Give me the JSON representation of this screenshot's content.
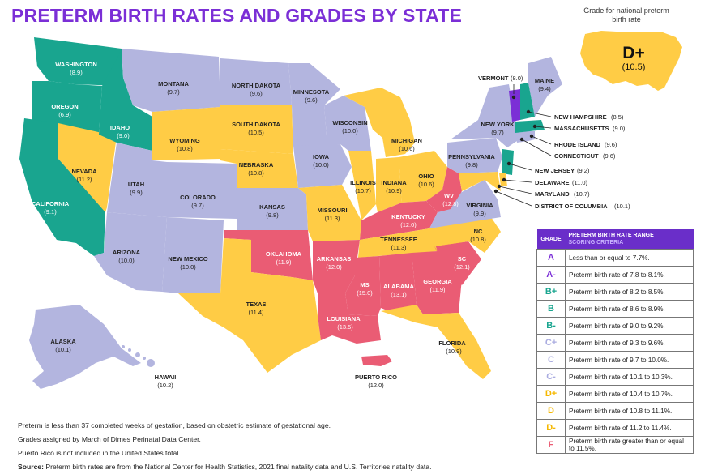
{
  "title": "PRETERM BIRTH RATES AND GRADES BY STATE",
  "national": {
    "caption": "Grade for national preterm birth rate",
    "grade": "D+",
    "rate": "(10.5)"
  },
  "colors": {
    "A": "#7b2fd6",
    "B": "#19a58f",
    "C": "#b3b5df",
    "D": "#ffcc45",
    "F": "#ea5c74"
  },
  "states": {
    "WA": {
      "name": "WASHINGTON",
      "rate": "(8.9)"
    },
    "OR": {
      "name": "OREGON",
      "rate": "(6.9)"
    },
    "CA": {
      "name": "CALIFORNIA",
      "rate": "(9.1)"
    },
    "NV": {
      "name": "NEVADA",
      "rate": "(11.2)"
    },
    "ID": {
      "name": "IDAHO",
      "rate": "(9.0)"
    },
    "MT": {
      "name": "MONTANA",
      "rate": "(9.7)"
    },
    "WY": {
      "name": "WYOMING",
      "rate": "(10.8)"
    },
    "UT": {
      "name": "UTAH",
      "rate": "(9.9)"
    },
    "AZ": {
      "name": "ARIZONA",
      "rate": "(10.0)"
    },
    "CO": {
      "name": "COLORADO",
      "rate": "(9.7)"
    },
    "NM": {
      "name": "NEW MEXICO",
      "rate": "(10.0)"
    },
    "ND": {
      "name": "NORTH DAKOTA",
      "rate": "(9.6)"
    },
    "SD": {
      "name": "SOUTH DAKOTA",
      "rate": "(10.5)"
    },
    "NE": {
      "name": "NEBRASKA",
      "rate": "(10.8)"
    },
    "KS": {
      "name": "KANSAS",
      "rate": "(9.8)"
    },
    "OK": {
      "name": "OKLAHOMA",
      "rate": "(11.9)"
    },
    "TX": {
      "name": "TEXAS",
      "rate": "(11.4)"
    },
    "MN": {
      "name": "MINNESOTA",
      "rate": "(9.6)"
    },
    "IA": {
      "name": "IOWA",
      "rate": "(10.0)"
    },
    "MO": {
      "name": "MISSOURI",
      "rate": "(11.3)"
    },
    "AR": {
      "name": "ARKANSAS",
      "rate": "(12.0)"
    },
    "LA": {
      "name": "LOUISIANA",
      "rate": "(13.5)"
    },
    "WI": {
      "name": "WISCONSIN",
      "rate": "(10.0)"
    },
    "IL": {
      "name": "ILLINOIS",
      "rate": "(10.7)"
    },
    "MI": {
      "name": "MICHIGAN",
      "rate": "(10.6)"
    },
    "IN": {
      "name": "INDIANA",
      "rate": "(10.9)"
    },
    "OH": {
      "name": "OHIO",
      "rate": "(10.6)"
    },
    "KY": {
      "name": "KENTUCKY",
      "rate": "(12.0)"
    },
    "TN": {
      "name": "TENNESSEE",
      "rate": "(11.3)"
    },
    "MS": {
      "name": "MS",
      "rate": "(15.0)"
    },
    "AL": {
      "name": "ALABAMA",
      "rate": "(13.1)"
    },
    "GA": {
      "name": "GEORGIA",
      "rate": "(11.9)"
    },
    "FL": {
      "name": "FLORIDA",
      "rate": "(10.9)"
    },
    "SC": {
      "name": "SC",
      "rate": "(12.1)"
    },
    "NC": {
      "name": "NC",
      "rate": "(10.8)"
    },
    "VA": {
      "name": "VIRGINIA",
      "rate": "(9.9)"
    },
    "WV": {
      "name": "WV",
      "rate": "(12.8)"
    },
    "PA": {
      "name": "PENNSYLVANIA",
      "rate": "(9.8)"
    },
    "NY": {
      "name": "NEW YORK",
      "rate": "(9.7)"
    },
    "ME": {
      "name": "MAINE",
      "rate": "(9.4)"
    },
    "AK": {
      "name": "ALASKA",
      "rate": "(10.1)"
    },
    "HI": {
      "name": "HAWAII",
      "rate": "(10.2)"
    },
    "PR": {
      "name": "PUERTO RICO",
      "rate": "(12.0)"
    }
  },
  "callouts": {
    "VT": {
      "name": "VERMONT",
      "rate": "(8.0)"
    },
    "NH": {
      "name": "NEW HAMPSHIRE",
      "rate": "(8.5)"
    },
    "MA": {
      "name": "MASSACHUSETTS",
      "rate": "(9.0)"
    },
    "RI": {
      "name": "RHODE ISLAND",
      "rate": "(9.6)"
    },
    "CT": {
      "name": "CONNECTICUT",
      "rate": "(9.6)"
    },
    "NJ": {
      "name": "NEW JERSEY",
      "rate": "(9.2)"
    },
    "DE": {
      "name": "DELAWARE",
      "rate": "(11.0)"
    },
    "MD": {
      "name": "MARYLAND",
      "rate": "(10.7)"
    },
    "DC": {
      "name": "DISTRICT OF COLUMBIA",
      "rate": "(10.1)"
    }
  },
  "legend": {
    "header_grade": "GRADE",
    "header_range": "PRETERM BIRTH RATE RANGE",
    "header_sub": "SCORING CRITERIA",
    "rows": [
      {
        "grade": "A",
        "text": "Less than or equal to 7.7%.",
        "color": "#7b2fd6"
      },
      {
        "grade": "A-",
        "text": "Preterm birth rate of 7.8 to 8.1%.",
        "color": "#7b2fd6"
      },
      {
        "grade": "B+",
        "text": "Preterm birth rate of 8.2 to 8.5%.",
        "color": "#19a58f"
      },
      {
        "grade": "B",
        "text": "Preterm birth rate of 8.6 to 8.9%.",
        "color": "#19a58f"
      },
      {
        "grade": "B-",
        "text": "Preterm birth rate of 9.0 to 9.2%.",
        "color": "#19a58f"
      },
      {
        "grade": "C+",
        "text": "Preterm birth rate of 9.3 to 9.6%.",
        "color": "#a9abe0"
      },
      {
        "grade": "C",
        "text": "Preterm birth rate of 9.7 to 10.0%.",
        "color": "#a9abe0"
      },
      {
        "grade": "C-",
        "text": "Preterm birth rate of 10.1 to 10.3%.",
        "color": "#a9abe0"
      },
      {
        "grade": "D+",
        "text": "Preterm birth rate of 10.4 to 10.7%.",
        "color": "#f5b800"
      },
      {
        "grade": "D",
        "text": "Preterm birth rate of 10.8 to 11.1%.",
        "color": "#f5b800"
      },
      {
        "grade": "D-",
        "text": "Preterm birth rate of 11.2 to 11.4%.",
        "color": "#f5b800"
      },
      {
        "grade": "F",
        "text": "Preterm birth rate greater than or equal to 11.5%.",
        "color": "#ea5c74"
      }
    ]
  },
  "notes": {
    "line1": "Preterm is less than 37 completed weeks of gestation, based on obstetric estimate of gestational age.",
    "line2": "Grades assigned by March of Dimes Perinatal Data Center.",
    "line3": "Puerto Rico is not included in the United States total.",
    "source_label": "Source:",
    "source_text": " Preterm birth rates are from the National Center for Health Statistics, 2021 final natality data and U.S. Territories natality data."
  }
}
